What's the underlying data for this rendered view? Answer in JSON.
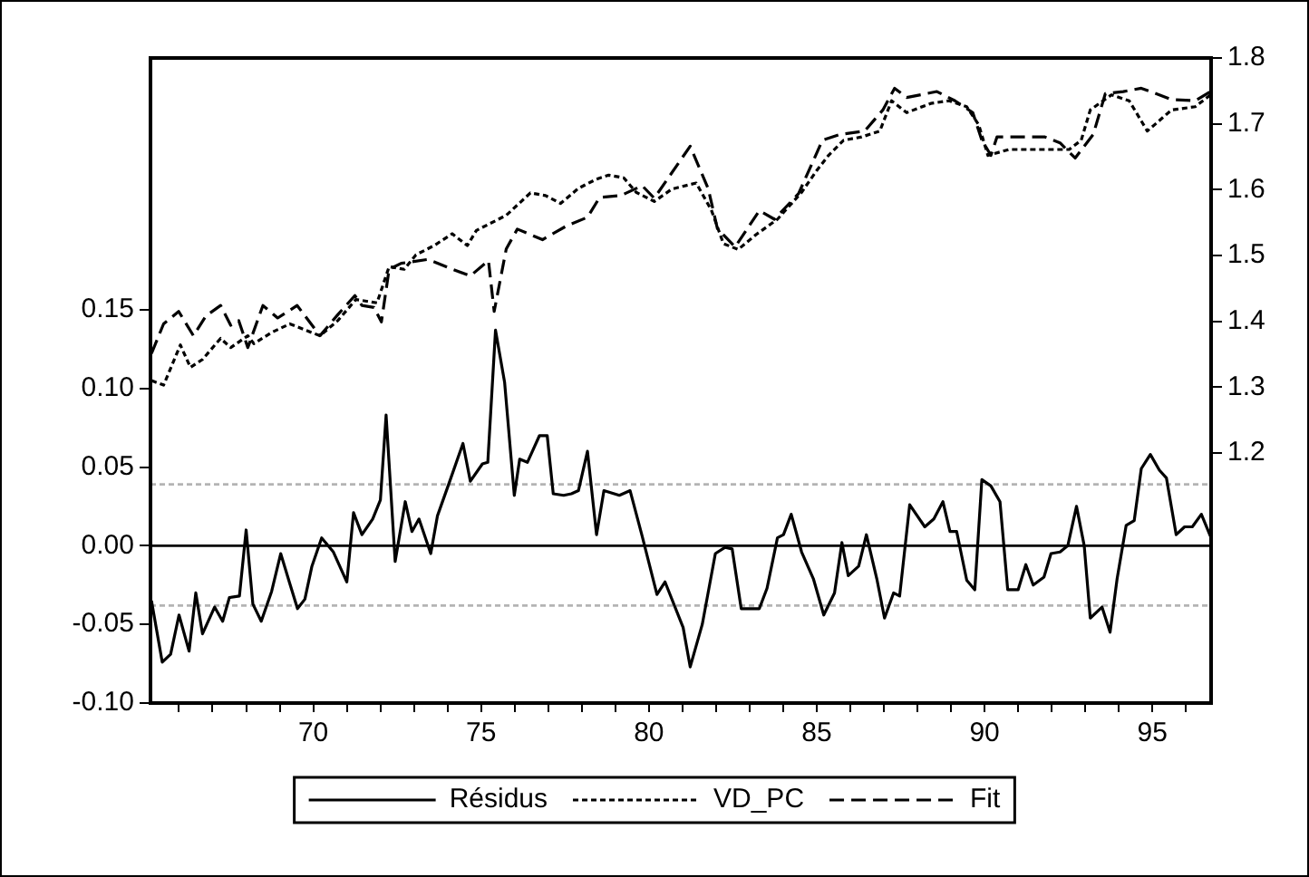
{
  "chart_data": {
    "type": "line",
    "xlim": [
      65.15,
      96.75
    ],
    "xticks": [
      {
        "value": 66,
        "label": null
      },
      {
        "value": 67,
        "label": null
      },
      {
        "value": 68,
        "label": null
      },
      {
        "value": 69,
        "label": null
      },
      70,
      {
        "value": 71,
        "label": null
      },
      {
        "value": 72,
        "label": null
      },
      {
        "value": 73,
        "label": null
      },
      {
        "value": 74,
        "label": null
      },
      75,
      {
        "value": 76,
        "label": null
      },
      {
        "value": 77,
        "label": null
      },
      {
        "value": 78,
        "label": null
      },
      {
        "value": 79,
        "label": null
      },
      80,
      {
        "value": 81,
        "label": null
      },
      {
        "value": 82,
        "label": null
      },
      {
        "value": 83,
        "label": null
      },
      {
        "value": 84,
        "label": null
      },
      85,
      {
        "value": 86,
        "label": null
      },
      {
        "value": 87,
        "label": null
      },
      {
        "value": 88,
        "label": null
      },
      {
        "value": 89,
        "label": null
      },
      90,
      {
        "value": 91,
        "label": null
      },
      {
        "value": 92,
        "label": null
      },
      {
        "value": 93,
        "label": null
      },
      {
        "value": 94,
        "label": null
      },
      95,
      {
        "value": 96,
        "label": null
      }
    ],
    "ylim": [
      -0.1,
      0.31
    ],
    "yticks": [
      {
        "value": -0.1,
        "label": "-0.10"
      },
      {
        "value": -0.05,
        "label": "-0.05"
      },
      {
        "value": 0,
        "label": "0.00"
      },
      {
        "value": 0.05,
        "label": "0.05"
      },
      {
        "value": 0.1,
        "label": "0.10"
      },
      {
        "value": 0.15,
        "label": "0.15"
      }
    ],
    "y2lim": [
      0.82,
      1.8
    ],
    "y2ticks": [
      1.2,
      1.3,
      1.4,
      1.5,
      1.6,
      1.7,
      1.8
    ],
    "legend": "bottom",
    "marker": "none",
    "ref_lines": [
      {
        "axis": "y",
        "value": 0,
        "color": "#000000",
        "line_style": "solid"
      },
      {
        "axis": "y",
        "value": 0.039,
        "color": "#b4b4b4",
        "line_style": "dotted"
      },
      {
        "axis": "y",
        "value": -0.038,
        "color": "#b4b4b4",
        "line_style": "dotted"
      }
    ],
    "series": [
      {
        "name": "Résidus",
        "color": "#000000",
        "line_style": "solid",
        "axis": "y",
        "x": [
          65.18,
          65.5,
          65.75,
          66.0,
          66.3,
          66.5,
          66.7,
          67.06,
          67.3,
          67.5,
          67.8,
          68.0,
          68.2,
          68.45,
          68.76,
          69.03,
          69.3,
          69.53,
          69.75,
          69.96,
          70.25,
          70.6,
          71.0,
          71.2,
          71.45,
          71.77,
          72.0,
          72.17,
          72.44,
          72.74,
          72.94,
          73.15,
          73.5,
          73.7,
          74.05,
          74.46,
          74.68,
          75.04,
          75.2,
          75.43,
          75.7,
          75.99,
          76.15,
          76.38,
          76.74,
          76.97,
          77.15,
          77.46,
          77.69,
          77.9,
          78.17,
          78.44,
          78.66,
          79.12,
          79.44,
          79.8,
          80.24,
          80.48,
          81.02,
          81.23,
          81.59,
          81.98,
          82.27,
          82.48,
          82.75,
          83.29,
          83.52,
          83.83,
          84.01,
          84.24,
          84.55,
          84.9,
          85.21,
          85.53,
          85.75,
          85.94,
          86.25,
          86.48,
          86.79,
          87.02,
          87.29,
          87.47,
          87.77,
          88.22,
          88.49,
          88.76,
          88.97,
          89.17,
          89.47,
          89.71,
          89.92,
          90.19,
          90.46,
          90.69,
          91.0,
          91.23,
          91.45,
          91.77,
          91.98,
          92.25,
          92.48,
          92.74,
          92.97,
          93.15,
          93.5,
          93.74,
          93.95,
          94.22,
          94.46,
          94.67,
          94.94,
          95.21,
          95.42,
          95.71,
          95.96,
          96.19,
          96.46,
          96.73
        ],
        "values": [
          -0.035,
          -0.074,
          -0.069,
          -0.044,
          -0.067,
          -0.03,
          -0.056,
          -0.039,
          -0.048,
          -0.033,
          -0.032,
          0.01,
          -0.037,
          -0.048,
          -0.029,
          -0.005,
          -0.024,
          -0.04,
          -0.034,
          -0.013,
          0.005,
          -0.004,
          -0.023,
          0.021,
          0.007,
          0.017,
          0.029,
          0.083,
          -0.01,
          0.028,
          0.009,
          0.017,
          -0.005,
          0.019,
          0.04,
          0.065,
          0.041,
          0.052,
          0.053,
          0.137,
          0.104,
          0.032,
          0.055,
          0.053,
          0.07,
          0.07,
          0.033,
          0.032,
          0.033,
          0.035,
          0.06,
          0.007,
          0.035,
          0.032,
          0.035,
          0.006,
          -0.031,
          -0.023,
          -0.052,
          -0.077,
          -0.05,
          -0.005,
          -0.001,
          -0.002,
          -0.04,
          -0.04,
          -0.027,
          0.005,
          0.007,
          0.02,
          -0.004,
          -0.021,
          -0.044,
          -0.03,
          0.002,
          -0.019,
          -0.013,
          0.007,
          -0.021,
          -0.046,
          -0.03,
          -0.032,
          0.026,
          0.012,
          0.017,
          0.028,
          0.009,
          0.009,
          -0.022,
          -0.028,
          0.042,
          0.038,
          0.028,
          -0.028,
          -0.028,
          -0.012,
          -0.025,
          -0.02,
          -0.005,
          -0.004,
          0.0,
          0.025,
          0.0,
          -0.046,
          -0.039,
          -0.055,
          -0.021,
          0.013,
          0.016,
          0.049,
          0.058,
          0.048,
          0.043,
          0.007,
          0.012,
          0.012,
          0.02,
          0.006
        ]
      },
      {
        "name": "VD_PC",
        "color": "#000000",
        "line_style": "dotted",
        "axis": "y2",
        "x": [
          65.18,
          65.54,
          66.04,
          66.34,
          66.7,
          67.24,
          67.54,
          68.05,
          68.23,
          68.76,
          69.3,
          70.2,
          70.73,
          71.27,
          71.9,
          72.26,
          72.71,
          73.06,
          73.6,
          74.14,
          74.59,
          74.86,
          75.75,
          76.47,
          76.92,
          77.37,
          77.9,
          78.44,
          78.8,
          79.25,
          79.62,
          80.16,
          80.69,
          81.41,
          81.86,
          82.22,
          82.66,
          83.2,
          83.83,
          84.55,
          85.0,
          85.35,
          85.8,
          86.34,
          86.88,
          87.23,
          87.68,
          88.4,
          88.94,
          89.47,
          89.83,
          90.1,
          90.73,
          91.62,
          92.52,
          92.88,
          93.15,
          93.78,
          94.31,
          94.85,
          95.57,
          96.28,
          96.73
        ],
        "values": [
          1.31,
          1.303,
          1.364,
          1.33,
          1.342,
          1.374,
          1.36,
          1.378,
          1.366,
          1.383,
          1.396,
          1.378,
          1.401,
          1.433,
          1.428,
          1.483,
          1.479,
          1.501,
          1.515,
          1.533,
          1.515,
          1.538,
          1.561,
          1.595,
          1.591,
          1.579,
          1.602,
          1.616,
          1.622,
          1.618,
          1.596,
          1.582,
          1.601,
          1.61,
          1.569,
          1.518,
          1.509,
          1.532,
          1.555,
          1.596,
          1.629,
          1.652,
          1.675,
          1.68,
          1.689,
          1.735,
          1.717,
          1.731,
          1.735,
          1.726,
          1.698,
          1.652,
          1.661,
          1.661,
          1.661,
          1.675,
          1.721,
          1.744,
          1.735,
          1.689,
          1.721,
          1.726,
          1.744
        ]
      },
      {
        "name": "Fit",
        "color": "#000000",
        "line_style": "dashed",
        "axis": "y2",
        "x": [
          65.18,
          65.54,
          65.99,
          66.43,
          66.8,
          67.24,
          67.54,
          67.78,
          68.05,
          68.5,
          68.94,
          69.52,
          70.2,
          70.73,
          71.24,
          71.45,
          71.81,
          72.03,
          72.26,
          72.62,
          73.42,
          74.14,
          74.68,
          75.22,
          75.39,
          75.75,
          76.08,
          76.83,
          77.55,
          78.17,
          78.53,
          79.16,
          79.8,
          80.16,
          81.23,
          81.77,
          82.04,
          82.57,
          83.29,
          83.74,
          84.46,
          85.17,
          85.71,
          86.43,
          86.97,
          87.32,
          87.68,
          88.58,
          89.12,
          89.65,
          89.92,
          90.19,
          90.37,
          91.8,
          92.25,
          92.7,
          93.24,
          93.6,
          94.13,
          94.67,
          95.57,
          96.28,
          96.73
        ],
        "values": [
          1.351,
          1.396,
          1.415,
          1.378,
          1.408,
          1.424,
          1.394,
          1.401,
          1.36,
          1.424,
          1.405,
          1.424,
          1.378,
          1.41,
          1.439,
          1.424,
          1.421,
          1.399,
          1.479,
          1.488,
          1.494,
          1.479,
          1.469,
          1.492,
          1.415,
          1.51,
          1.54,
          1.524,
          1.545,
          1.558,
          1.588,
          1.591,
          1.606,
          1.587,
          1.666,
          1.601,
          1.541,
          1.513,
          1.568,
          1.555,
          1.594,
          1.675,
          1.684,
          1.689,
          1.721,
          1.754,
          1.74,
          1.749,
          1.735,
          1.717,
          1.675,
          1.652,
          1.68,
          1.68,
          1.671,
          1.648,
          1.684,
          1.746,
          1.749,
          1.754,
          1.737,
          1.735,
          1.749
        ]
      }
    ]
  }
}
